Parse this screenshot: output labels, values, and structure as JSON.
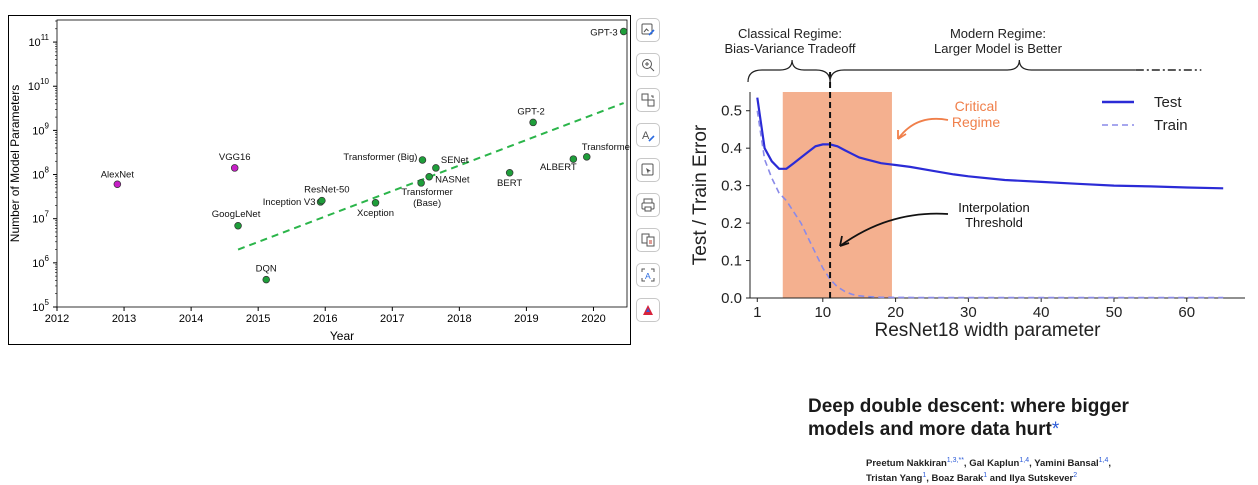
{
  "left_chart": {
    "chart_data": {
      "type": "scatter",
      "xlabel": "Year",
      "ylabel": "Number of Model Parameters",
      "xlim": [
        2012,
        2020.5
      ],
      "ylim_log10": [
        5,
        11.5
      ],
      "y_scale": "log",
      "x_ticks": [
        "2012",
        "2013",
        "2014",
        "2015",
        "2016",
        "2017",
        "2018",
        "2019",
        "2020"
      ],
      "y_ticks": [
        {
          "base": "10",
          "exp": "5",
          "v": 5
        },
        {
          "base": "10",
          "exp": "6",
          "v": 6
        },
        {
          "base": "10",
          "exp": "7",
          "v": 7
        },
        {
          "base": "10",
          "exp": "8",
          "v": 8
        },
        {
          "base": "10",
          "exp": "9",
          "v": 9
        },
        {
          "base": "10",
          "exp": "10",
          "v": 10
        },
        {
          "base": "10",
          "exp": "11",
          "v": 11
        }
      ],
      "points": [
        {
          "label": "AlexNet",
          "x": 2012.9,
          "y_log10": 7.78,
          "color": "#c71fc7"
        },
        {
          "label": "VGG16",
          "x": 2014.65,
          "y_log10": 8.15,
          "color": "#c71fc7"
        },
        {
          "label": "GoogLeNet",
          "x": 2014.7,
          "y_log10": 6.84,
          "color": "#1e9e3a"
        },
        {
          "label": "DQN",
          "x": 2015.12,
          "y_log10": 5.62,
          "color": "#1e9e3a"
        },
        {
          "label": "Inception V3",
          "x": 2015.93,
          "y_log10": 7.38,
          "color": "#1e9e3a"
        },
        {
          "label": "ResNet-50",
          "x": 2015.95,
          "y_log10": 7.41,
          "color": "#1e9e3a"
        },
        {
          "label": "Xception",
          "x": 2016.75,
          "y_log10": 7.36,
          "color": "#1e9e3a"
        },
        {
          "label": "Transformer (Big)",
          "x": 2017.45,
          "y_log10": 8.33,
          "color": "#1e9e3a"
        },
        {
          "label": "Transformer (Base)",
          "x": 2017.43,
          "y_log10": 7.81,
          "color": "#1e9e3a"
        },
        {
          "label": "NASNet",
          "x": 2017.55,
          "y_log10": 7.95,
          "color": "#1e9e3a"
        },
        {
          "label": "SENet",
          "x": 2017.65,
          "y_log10": 8.15,
          "color": "#1e9e3a"
        },
        {
          "label": "BERT",
          "x": 2018.75,
          "y_log10": 8.04,
          "color": "#1e9e3a"
        },
        {
          "label": "GPT-2",
          "x": 2019.1,
          "y_log10": 9.18,
          "color": "#1e9e3a"
        },
        {
          "label": "ALBERT",
          "x": 2019.7,
          "y_log10": 8.35,
          "color": "#1e9e3a"
        },
        {
          "label": "Transformer-XL",
          "x": 2019.9,
          "y_log10": 8.4,
          "color": "#1e9e3a"
        },
        {
          "label": "GPT-3",
          "x": 2020.45,
          "y_log10": 11.24,
          "color": "#1e9e3a"
        }
      ],
      "trend": {
        "x": [
          2014.7,
          2020.45
        ],
        "y_log10": [
          6.3,
          9.62
        ],
        "color": "#2bb54a"
      }
    }
  },
  "toolbar": {
    "buttons": [
      "image-edit-icon",
      "zoom-in-icon",
      "copy-region-icon",
      "text-edit-icon",
      "select-region-icon",
      "print-icon",
      "compare-pages-icon",
      "ocr-text-icon",
      "acrobat-icon"
    ]
  },
  "right_chart": {
    "chart_data": {
      "type": "line",
      "xlabel": "ResNet18 width parameter",
      "ylabel": "Test / Train Error",
      "xlim": [
        0,
        68
      ],
      "ylim": [
        0,
        0.55
      ],
      "x_ticks": [
        "1",
        "10",
        "20",
        "30",
        "40",
        "50",
        "60"
      ],
      "y_ticks": [
        "0.0",
        "0.1",
        "0.2",
        "0.3",
        "0.4",
        "0.5"
      ],
      "series": [
        {
          "name": "Test",
          "color": "#2b2bd6",
          "x": [
            1,
            2,
            3,
            4,
            5,
            6,
            7,
            8,
            9,
            10,
            11,
            12,
            13,
            14,
            15,
            16,
            17,
            18,
            20,
            22,
            25,
            28,
            30,
            35,
            40,
            45,
            50,
            55,
            60,
            65
          ],
          "y": [
            0.535,
            0.4,
            0.365,
            0.345,
            0.345,
            0.36,
            0.375,
            0.39,
            0.405,
            0.41,
            0.41,
            0.405,
            0.395,
            0.385,
            0.375,
            0.37,
            0.365,
            0.36,
            0.355,
            0.35,
            0.34,
            0.33,
            0.325,
            0.315,
            0.31,
            0.305,
            0.3,
            0.298,
            0.295,
            0.293
          ]
        },
        {
          "name": "Train",
          "color": "#8a8ae8",
          "x": [
            1,
            2,
            3,
            4,
            5,
            6,
            7,
            8,
            9,
            10,
            11,
            12,
            13,
            14,
            15,
            16,
            17,
            18,
            20,
            25,
            30,
            40,
            50,
            65
          ],
          "y": [
            0.5,
            0.37,
            0.32,
            0.28,
            0.26,
            0.23,
            0.2,
            0.16,
            0.12,
            0.08,
            0.05,
            0.03,
            0.018,
            0.01,
            0.006,
            0.004,
            0.003,
            0.002,
            0.0015,
            0.001,
            0.001,
            0.001,
            0.001,
            0.001
          ]
        }
      ],
      "regime_band": {
        "x": [
          4.5,
          19.5
        ],
        "color": "#f4b08f"
      },
      "threshold_x": 11,
      "annotations": {
        "classical": [
          "Classical Regime:",
          "Bias-Variance Tradeoff"
        ],
        "modern": [
          "Modern Regime:",
          "Larger Model is Better"
        ],
        "critical": [
          "Critical",
          "Regime"
        ],
        "interpolation": [
          "Interpolation",
          "Threshold"
        ]
      },
      "legend_placement": "top-right"
    }
  },
  "paper": {
    "title": "Deep double descent: where bigger models and more data hurt",
    "title_mark": "*",
    "authors": [
      {
        "name": "Preetum Nakkiran",
        "sup": "1,3,**",
        "sep": ", "
      },
      {
        "name": "Gal Kaplun",
        "sup": "1,4",
        "sep": ", "
      },
      {
        "name": "Yamini Bansal",
        "sup": "1,4",
        "sep": ","
      },
      {
        "name": "Tristan Yang",
        "sup": "1",
        "sep": ", "
      },
      {
        "name": "Boaz Barak",
        "sup": "1",
        "sep": " and "
      },
      {
        "name": "Ilya Sutskever",
        "sup": "2",
        "sep": ""
      }
    ]
  }
}
